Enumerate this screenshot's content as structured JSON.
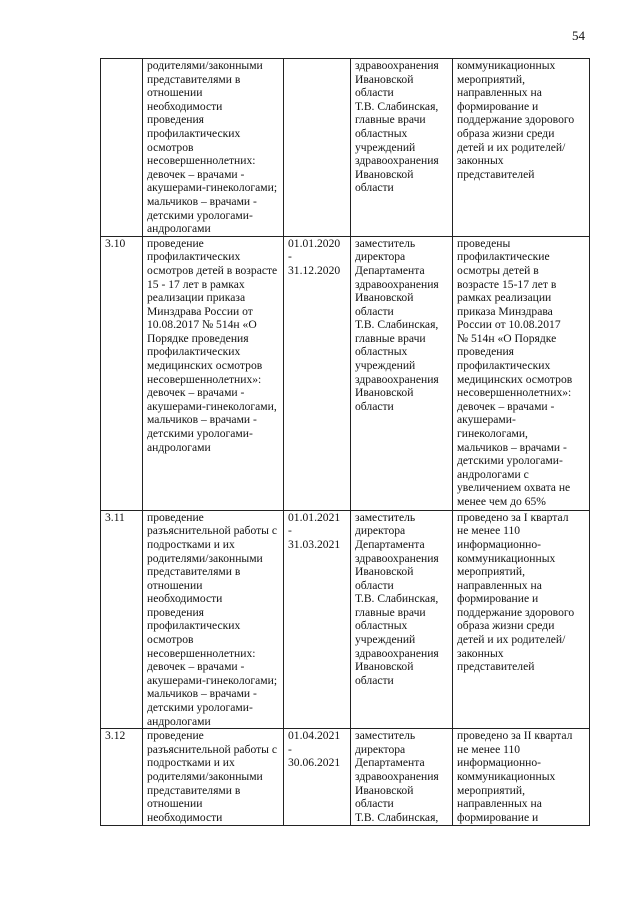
{
  "page_number": "54",
  "rows": [
    {
      "num": "",
      "measure": [
        "родителями/законными",
        "представителями в",
        "отношении",
        "необходимости",
        "проведения",
        "профилактических",
        "осмотров",
        "несовершеннолетних:",
        "девочек – врачами -",
        "акушерами-гинекологами;",
        "мальчиков – врачами -",
        "детскими урологами-",
        "андрологами"
      ],
      "dates": [],
      "responsible": [
        "здравоохранения",
        "Ивановской",
        "области",
        "Т.В. Слабинская,",
        "главные врачи",
        "областных",
        "учреждений",
        "здравоохранения",
        "Ивановской",
        "области"
      ],
      "result": [
        "коммуникационных",
        "мероприятий,",
        "направленных на",
        "формирование и",
        "поддержание здорового",
        "образа жизни среди",
        "детей и их родителей/",
        "законных",
        "представителей"
      ]
    },
    {
      "num": "3.10",
      "measure": [
        "проведение",
        "профилактических",
        "осмотров детей в возрасте",
        "15 - 17 лет в рамках",
        "реализации приказа",
        "Минздрава России от",
        "10.08.2017 № 514н «О",
        "Порядке проведения",
        "профилактических",
        "медицинских осмотров",
        "несовершеннолетних»:",
        "девочек – врачами -",
        "акушерами-гинекологами,",
        "мальчиков – врачами -",
        "детскими урологами-",
        "андрологами"
      ],
      "dates": [
        "01.01.2020",
        "-",
        "31.12.2020"
      ],
      "responsible": [
        "заместитель",
        "директора",
        "Департамента",
        "здравоохранения",
        "Ивановской",
        "области",
        "Т.В. Слабинская,",
        "главные врачи",
        "областных",
        "учреждений",
        "здравоохранения",
        "Ивановской",
        "области"
      ],
      "result": [
        "проведены",
        "профилактические",
        "осмотры детей в",
        "возрасте 15-17 лет в",
        "рамках реализации",
        "приказа Минздрава",
        "России от 10.08.2017",
        "№ 514н «О Порядке",
        "проведения",
        "профилактических",
        "медицинских осмотров",
        "несовершеннолетних»:",
        "девочек – врачами -",
        "акушерами-",
        "гинекологами,",
        "мальчиков – врачами -",
        "детскими урологами-",
        "андрологами с",
        "увеличением охвата не",
        "менее чем до 65%"
      ]
    },
    {
      "num": "3.11",
      "measure": [
        "проведение",
        "разъяснительной работы с",
        "подростками и их",
        "родителями/законными",
        "представителями в",
        "отношении",
        "необходимости",
        "проведения",
        "профилактических",
        "осмотров",
        "несовершеннолетних:",
        "девочек – врачами -",
        "акушерами-гинекологами;",
        "мальчиков – врачами -",
        "детскими урологами-",
        "андрологами"
      ],
      "dates": [
        "01.01.2021",
        "-",
        "31.03.2021"
      ],
      "responsible": [
        "заместитель",
        "директора",
        "Департамента",
        "здравоохранения",
        "Ивановской",
        "области",
        "Т.В. Слабинская,",
        "главные врачи",
        "областных",
        "учреждений",
        "здравоохранения",
        "Ивановской",
        "области"
      ],
      "result": [
        "проведено за I квартал",
        "не менее 110",
        "информационно-",
        "коммуникационных",
        "мероприятий,",
        "направленных на",
        "формирование и",
        "поддержание здорового",
        "образа жизни среди",
        "детей и их родителей/",
        "законных",
        "представителей"
      ]
    },
    {
      "num": "3.12",
      "measure": [
        "проведение",
        "разъяснительной работы с",
        "подростками и их",
        "родителями/законными",
        "представителями в",
        "отношении",
        "необходимости"
      ],
      "dates": [
        "01.04.2021",
        "-",
        "30.06.2021"
      ],
      "responsible": [
        "заместитель",
        "директора",
        "Департамента",
        "здравоохранения",
        "Ивановской",
        "области",
        "Т.В. Слабинская,"
      ],
      "result": [
        "проведено за II квартал",
        "не менее 110",
        "информационно-",
        "коммуникационных",
        "мероприятий,",
        "направленных на",
        "формирование и"
      ]
    }
  ]
}
